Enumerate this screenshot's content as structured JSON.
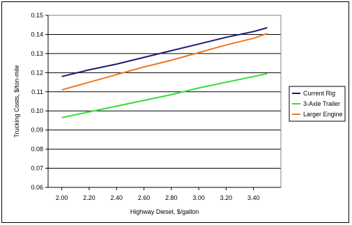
{
  "chart_data": {
    "type": "line",
    "title": "",
    "xlabel": "Highway Diesel, $/gallon",
    "ylabel": "Trucking Costs, $/ton-mile",
    "xlim": [
      1.9,
      3.6
    ],
    "ylim": [
      0.06,
      0.15
    ],
    "x_ticks": [
      "2.00",
      "2.20",
      "2.40",
      "2.60",
      "2.80",
      "3.00",
      "3.20",
      "3.40"
    ],
    "y_ticks": [
      "0.06",
      "0.07",
      "0.08",
      "0.09",
      "0.10",
      "0.11",
      "0.12",
      "0.13",
      "0.14",
      "0.15"
    ],
    "grid": "horizontal",
    "legend_position": "right",
    "x": [
      2.0,
      2.2,
      2.4,
      2.6,
      2.8,
      3.0,
      3.2,
      3.4,
      3.5
    ],
    "series": [
      {
        "name": "Current Rig",
        "color": "#1a1a6e",
        "values": [
          0.118,
          0.1215,
          0.1245,
          0.128,
          0.1315,
          0.135,
          0.1385,
          0.1415,
          0.1435
        ]
      },
      {
        "name": "3-Axle Trailer",
        "color": "#33dd33",
        "values": [
          0.0965,
          0.0995,
          0.1025,
          0.1055,
          0.1085,
          0.112,
          0.115,
          0.118,
          0.1195
        ]
      },
      {
        "name": "Larger Engine",
        "color": "#ee7722",
        "values": [
          0.111,
          0.115,
          0.119,
          0.123,
          0.1265,
          0.1305,
          0.1345,
          0.138,
          0.1405
        ]
      }
    ]
  }
}
